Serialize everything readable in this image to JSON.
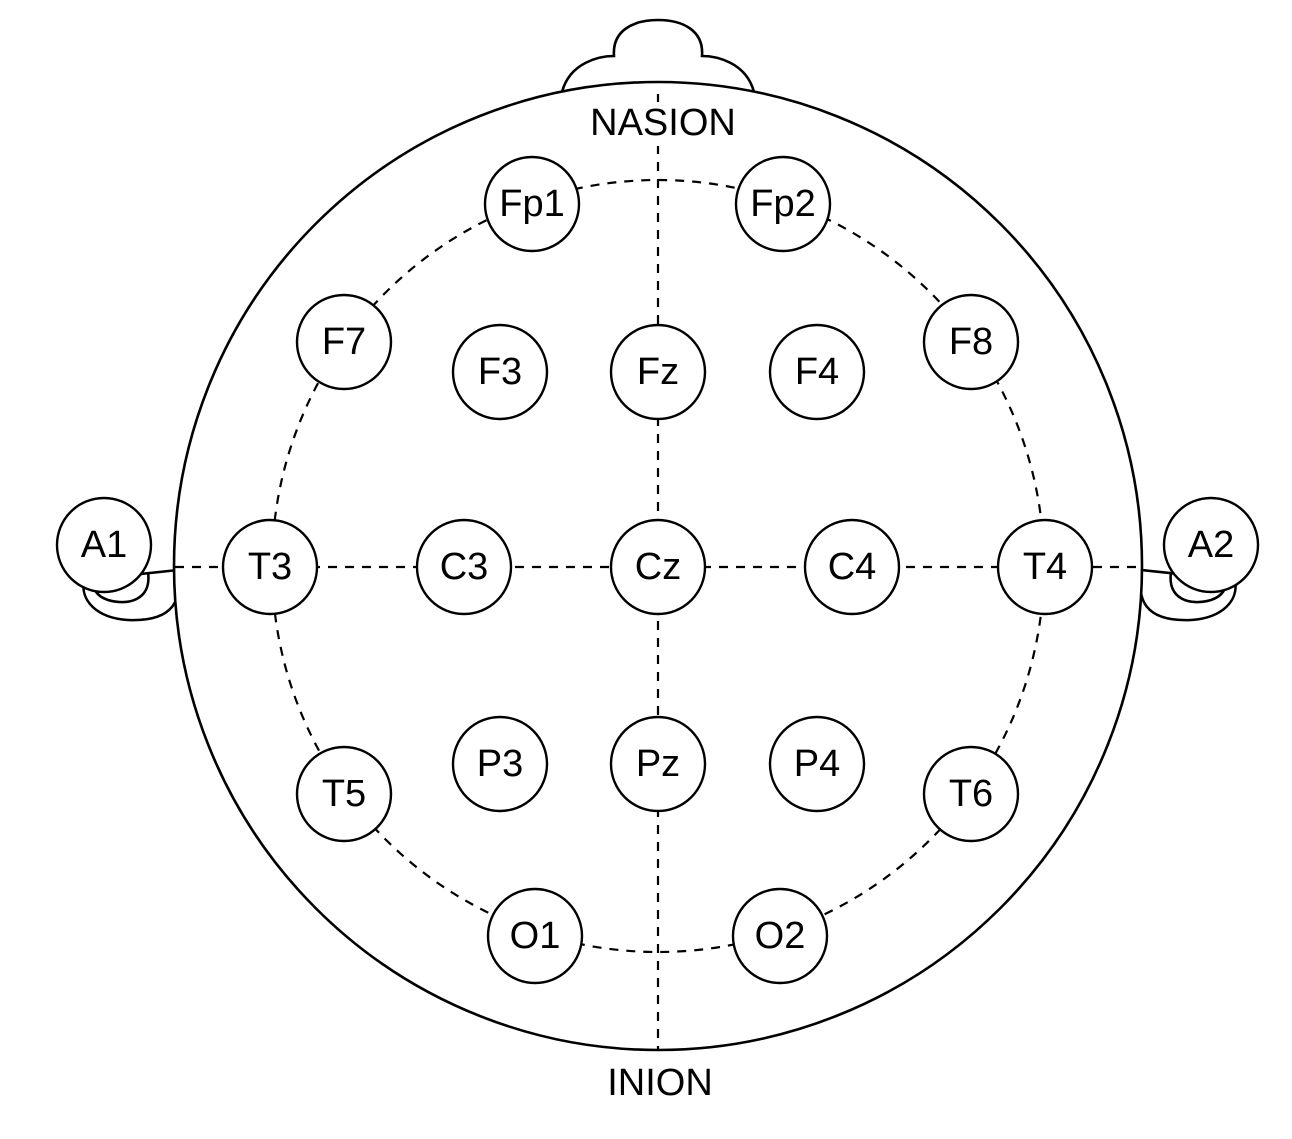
{
  "landmarks": {
    "nasion": "NASION",
    "inion": "INION"
  },
  "electrodes": {
    "Fp1": "Fp1",
    "Fp2": "Fp2",
    "F7": "F7",
    "F3": "F3",
    "Fz": "Fz",
    "F4": "F4",
    "F8": "F8",
    "A1": "A1",
    "T3": "T3",
    "C3": "C3",
    "Cz": "Cz",
    "C4": "C4",
    "T4": "T4",
    "A2": "A2",
    "T5": "T5",
    "P3": "P3",
    "Pz": "Pz",
    "P4": "P4",
    "T6": "T6",
    "O1": "O1",
    "O2": "O2"
  }
}
